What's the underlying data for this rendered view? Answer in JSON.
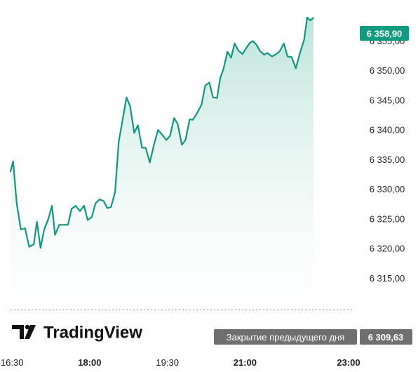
{
  "chart_data": {
    "type": "area",
    "currency_style": "price",
    "colors": {
      "line": "#12977f",
      "area_top": "#b9e2d8",
      "area_bottom": "#ffffff",
      "axis_text": "#1f1f1f",
      "last_price_bg": "#0f9b7f",
      "prev_close_bg": "#6f6f6f",
      "prev_close_line": "#8a8a8a",
      "logo": "#111111"
    },
    "y_axis": {
      "ticks": [
        "6 355,00",
        "6 350,00",
        "6 345,00",
        "6 340,00",
        "6 335,00",
        "6 330,00",
        "6 325,00",
        "6 320,00",
        "6 315,00"
      ],
      "tick_values": [
        6355,
        6350,
        6345,
        6340,
        6335,
        6330,
        6325,
        6320,
        6315
      ],
      "range": [
        6307.45,
        6359.8
      ]
    },
    "x_axis": {
      "range": [
        16.47,
        23.04
      ],
      "ticks": [
        {
          "label": "16:30",
          "value": 16.5,
          "bold": false
        },
        {
          "label": "18:00",
          "value": 18.0,
          "bold": true
        },
        {
          "label": "19:30",
          "value": 19.5,
          "bold": false
        },
        {
          "label": "21:00",
          "value": 21.0,
          "bold": true
        },
        {
          "label": "23:00",
          "value": 23.0,
          "bold": true
        }
      ]
    },
    "series": [
      {
        "values": [
          [
            16.47,
            6333.0
          ],
          [
            16.52,
            6334.7
          ],
          [
            16.59,
            6327.5
          ],
          [
            16.67,
            6323.2
          ],
          [
            16.75,
            6323.4
          ],
          [
            16.83,
            6320.3
          ],
          [
            16.92,
            6320.7
          ],
          [
            16.98,
            6324.5
          ],
          [
            17.05,
            6320.1
          ],
          [
            17.12,
            6323.2
          ],
          [
            17.2,
            6325.0
          ],
          [
            17.27,
            6327.2
          ],
          [
            17.33,
            6322.3
          ],
          [
            17.41,
            6324.0
          ],
          [
            17.49,
            6324.0
          ],
          [
            17.58,
            6324.0
          ],
          [
            17.65,
            6326.7
          ],
          [
            17.73,
            6327.2
          ],
          [
            17.81,
            6326.3
          ],
          [
            17.89,
            6327.2
          ],
          [
            17.96,
            6324.8
          ],
          [
            18.04,
            6325.3
          ],
          [
            18.11,
            6327.6
          ],
          [
            18.19,
            6328.3
          ],
          [
            18.27,
            6328.0
          ],
          [
            18.34,
            6326.8
          ],
          [
            18.41,
            6327.0
          ],
          [
            18.49,
            6329.5
          ],
          [
            18.56,
            6338.0
          ],
          [
            18.63,
            6341.5
          ],
          [
            18.71,
            6345.5
          ],
          [
            18.78,
            6344.0
          ],
          [
            18.86,
            6339.5
          ],
          [
            18.93,
            6340.8
          ],
          [
            19.01,
            6337.0
          ],
          [
            19.08,
            6337.0
          ],
          [
            19.16,
            6334.5
          ],
          [
            19.24,
            6337.5
          ],
          [
            19.32,
            6340.0
          ],
          [
            19.4,
            6339.2
          ],
          [
            19.48,
            6338.3
          ],
          [
            19.55,
            6339.0
          ],
          [
            19.63,
            6342.0
          ],
          [
            19.7,
            6341.0
          ],
          [
            19.78,
            6337.5
          ],
          [
            19.85,
            6338.3
          ],
          [
            19.93,
            6341.8
          ],
          [
            19.99,
            6341.7
          ],
          [
            20.07,
            6342.8
          ],
          [
            20.16,
            6344.3
          ],
          [
            20.23,
            6347.5
          ],
          [
            20.31,
            6348.0
          ],
          [
            20.38,
            6345.5
          ],
          [
            20.46,
            6345.4
          ],
          [
            20.52,
            6348.8
          ],
          [
            20.58,
            6350.2
          ],
          [
            20.66,
            6353.2
          ],
          [
            20.73,
            6352.2
          ],
          [
            20.8,
            6354.6
          ],
          [
            20.87,
            6353.4
          ],
          [
            20.95,
            6352.8
          ],
          [
            21.02,
            6353.8
          ],
          [
            21.09,
            6354.7
          ],
          [
            21.15,
            6355.0
          ],
          [
            21.22,
            6354.4
          ],
          [
            21.29,
            6353.3
          ],
          [
            21.37,
            6352.7
          ],
          [
            21.43,
            6353.0
          ],
          [
            21.52,
            6352.4
          ],
          [
            21.6,
            6352.8
          ],
          [
            21.67,
            6353.3
          ],
          [
            21.75,
            6354.6
          ],
          [
            21.82,
            6352.4
          ],
          [
            21.9,
            6352.3
          ],
          [
            21.98,
            6350.4
          ],
          [
            22.06,
            6353.0
          ],
          [
            22.14,
            6355.2
          ],
          [
            22.2,
            6359.0
          ],
          [
            22.26,
            6358.5
          ],
          [
            22.32,
            6358.9
          ]
        ]
      }
    ],
    "last_price": {
      "label": "6 358,90",
      "value": 6358.9
    },
    "previous_close": {
      "label": "Закрытие предыдущего дня",
      "value_label": "6 309,63",
      "value": 6309.63
    },
    "watermark": {
      "text": "TradingView"
    }
  }
}
